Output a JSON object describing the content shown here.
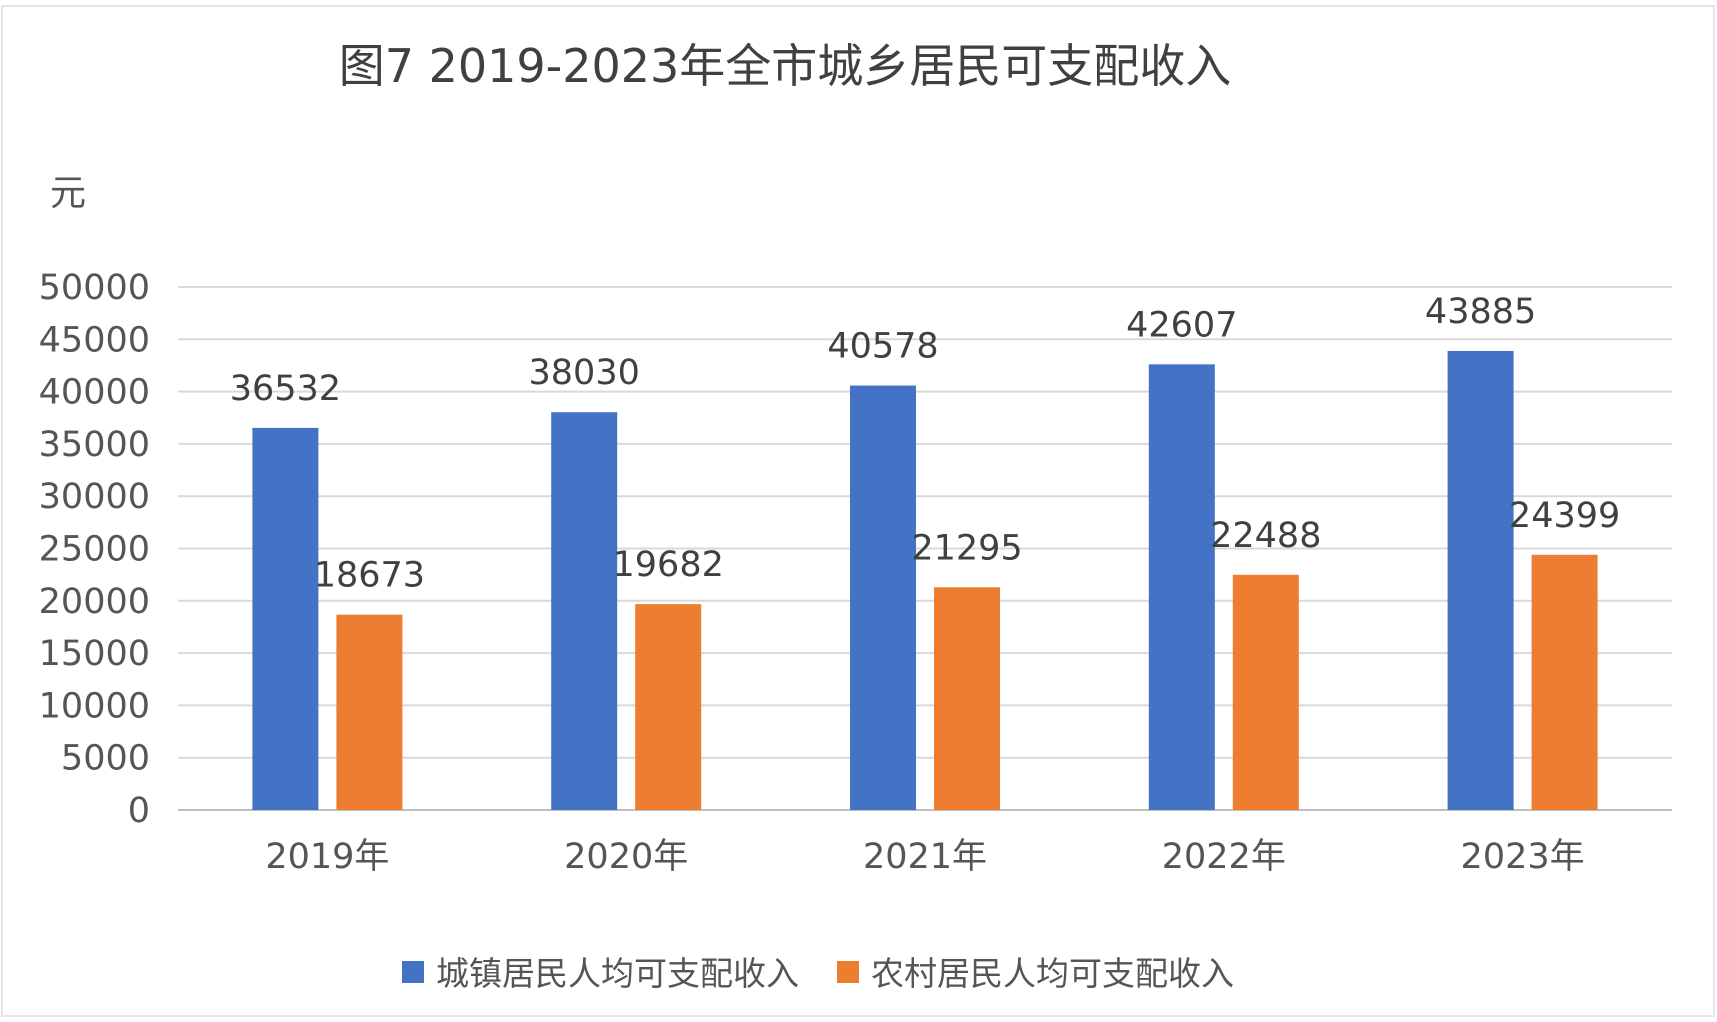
{
  "chart_data": {
    "type": "bar",
    "title": "图7 2019-2023年全市城乡居民可支配收入",
    "ylabel": "元",
    "categories": [
      "2019年",
      "2020年",
      "2021年",
      "2022年",
      "2023年"
    ],
    "ylim": [
      0,
      50000
    ],
    "yticks": [
      0,
      5000,
      10000,
      15000,
      20000,
      25000,
      30000,
      35000,
      40000,
      45000,
      50000
    ],
    "grid": true,
    "legend_position": "bottom",
    "series": [
      {
        "name": "城镇居民人均可支配收入",
        "color": "#4472c4",
        "values": [
          36532,
          38030,
          40578,
          42607,
          43885
        ]
      },
      {
        "name": "农村居民人均可支配收入",
        "color": "#ed7d31",
        "values": [
          18673,
          19682,
          21295,
          22488,
          24399
        ]
      }
    ]
  }
}
